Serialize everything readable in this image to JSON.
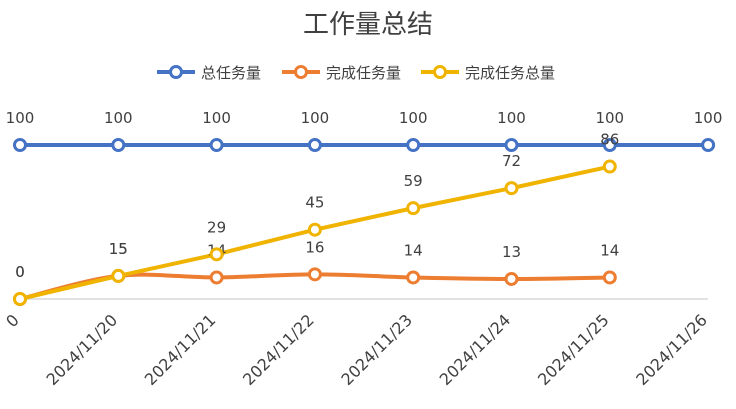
{
  "chart_data": {
    "type": "line",
    "title": "工作量总结",
    "categories": [
      "0",
      "2024/11/20",
      "2024/11/21",
      "2024/11/22",
      "2024/11/23",
      "2024/11/24",
      "2024/11/25",
      "2024/11/26"
    ],
    "series": [
      {
        "name": "总任务量",
        "color": "#4472C4",
        "values": [
          100,
          100,
          100,
          100,
          100,
          100,
          100,
          100
        ]
      },
      {
        "name": "完成任务量",
        "color": "#ED7D31",
        "values": [
          0,
          15,
          14,
          16,
          14,
          13,
          14,
          null
        ]
      },
      {
        "name": "完成任务总量",
        "color": "#F0B400",
        "values": [
          0,
          15,
          29,
          45,
          59,
          72,
          86,
          null
        ]
      }
    ],
    "ylim": [
      0,
      100
    ],
    "grid": false,
    "legend": "top"
  }
}
